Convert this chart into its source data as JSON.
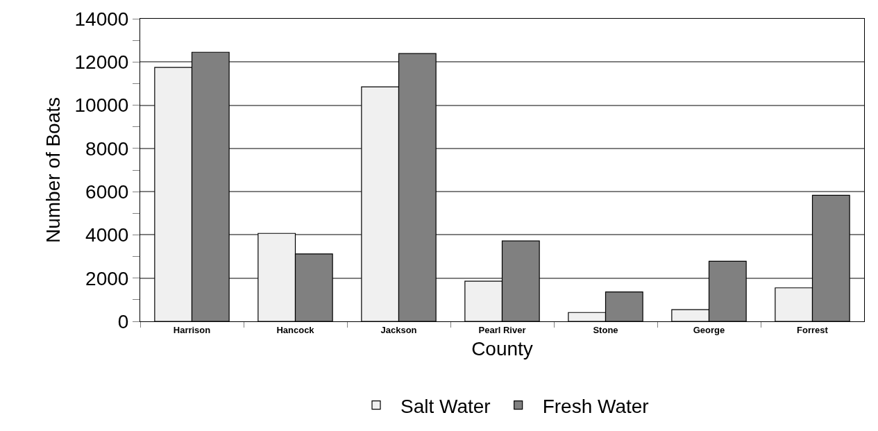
{
  "chart_data": {
    "type": "bar",
    "xlabel": "County",
    "ylabel": "Number of Boats",
    "categories": [
      "Harrison",
      "Hancock",
      "Jackson",
      "Pearl River",
      "Stone",
      "George",
      "Forrest"
    ],
    "series": [
      {
        "name": "Salt Water",
        "color": "#f0f0f0",
        "values": [
          11750,
          4070,
          10850,
          1860,
          410,
          540,
          1550
        ]
      },
      {
        "name": "Fresh Water",
        "color": "#808080",
        "values": [
          12450,
          3120,
          12390,
          3720,
          1360,
          2780,
          5830
        ]
      }
    ],
    "ylim": [
      0,
      14000
    ],
    "yticks": [
      0,
      {
        "value": 1000,
        "label": null
      },
      2000,
      {
        "value": 3000,
        "label": null
      },
      4000,
      {
        "value": 5000,
        "label": null
      },
      6000,
      {
        "value": 7000,
        "label": null
      },
      8000,
      {
        "value": 9000,
        "label": null
      },
      10000,
      {
        "value": 11000,
        "label": null
      },
      12000,
      {
        "value": 13000,
        "label": null
      },
      14000
    ],
    "grid": "y",
    "legend": "bottom"
  }
}
